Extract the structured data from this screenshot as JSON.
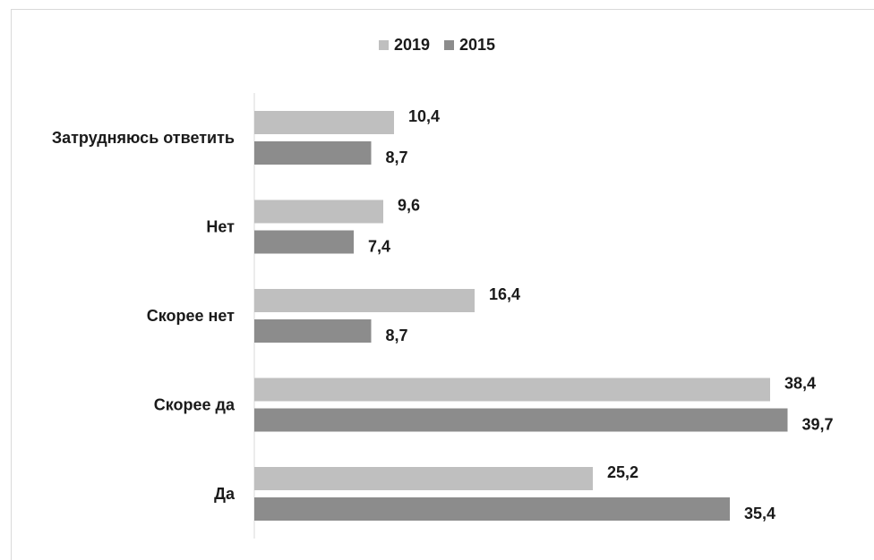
{
  "chart_data": {
    "type": "bar",
    "orientation": "horizontal",
    "categories": [
      "Затрудняюсь ответить",
      "Нет",
      "Скорее нет",
      "Скорее да",
      "Да"
    ],
    "series": [
      {
        "name": "2019",
        "color": "#bfbfbf",
        "values": [
          10.4,
          9.6,
          16.4,
          38.4,
          25.2
        ],
        "labels": [
          "10,4",
          "9,6",
          "16,4",
          "38,4",
          "25,2"
        ]
      },
      {
        "name": "2015",
        "color": "#8c8c8c",
        "values": [
          8.7,
          7.4,
          8.7,
          39.7,
          35.4
        ],
        "labels": [
          "8,7",
          "7,4",
          "8,7",
          "39,7",
          "35,4"
        ]
      }
    ],
    "legend_position": "top-center",
    "grid": false
  }
}
